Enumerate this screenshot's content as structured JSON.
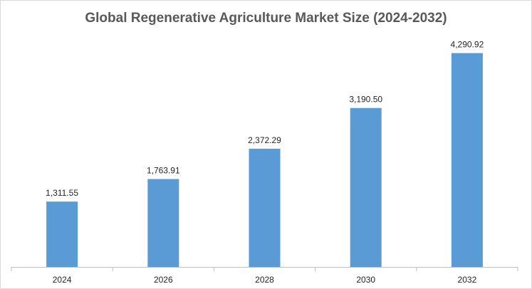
{
  "chart_data": {
    "type": "bar",
    "title": "Global Regenerative Agriculture Market Size (2024-2032)",
    "categories": [
      "2024",
      "2026",
      "2028",
      "2030",
      "2032"
    ],
    "values": [
      1311.55,
      1763.91,
      2372.29,
      3190.5,
      4290.92
    ],
    "value_labels": [
      "1,311.55",
      "1,763.91",
      "2,372.29",
      "3,190.50",
      "4,290.92"
    ],
    "xlabel": "",
    "ylabel": "",
    "ylim": [
      0,
      5000
    ],
    "grid": false,
    "legend": "none",
    "bar_color": "#5b9bd5"
  }
}
